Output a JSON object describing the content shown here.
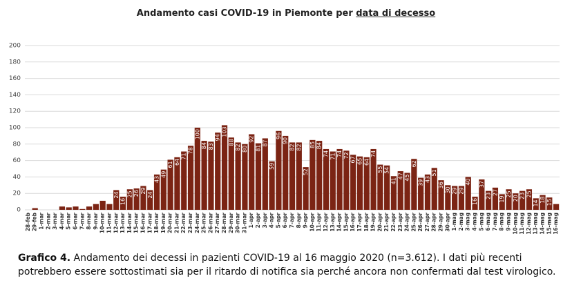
{
  "chart_data": {
    "type": "bar",
    "title": "Andamento casi COVID-19 in Piemonte per ",
    "title_emphasis": "data di decesso",
    "caption_label": "Grafico 4.",
    "caption": "Andamento dei decessi in pazienti COVID-19 al 16 maggio 2020 (n=3.612). I dati più recenti potrebbero essere sottostimati sia per il ritardo di notifica sia perché ancora non confermati dal test virologico.",
    "categories": [
      "28-feb",
      "29-feb",
      "1-mar",
      "2-mar",
      "3-mar",
      "4-mar",
      "5-mar",
      "6-mar",
      "7-mar",
      "8-mar",
      "9-mar",
      "10-mar",
      "11-mar",
      "12-mar",
      "13-mar",
      "14-mar",
      "15-mar",
      "16-mar",
      "17-mar",
      "18-mar",
      "19-mar",
      "20-mar",
      "21-mar",
      "22-mar",
      "23-mar",
      "24-mar",
      "25-mar",
      "26-mar",
      "27-mar",
      "28-mar",
      "29-mar",
      "30-mar",
      "31-mar",
      "1-apr",
      "2-apr",
      "3-apr",
      "4-apr",
      "5-apr",
      "6-apr",
      "7-apr",
      "8-apr",
      "9-apr",
      "10-apr",
      "11-apr",
      "12-apr",
      "13-apr",
      "14-apr",
      "15-apr",
      "16-apr",
      "17-apr",
      "18-apr",
      "19-apr",
      "20-apr",
      "21-apr",
      "22-apr",
      "23-apr",
      "24-apr",
      "25-apr",
      "26-apr",
      "27-apr",
      "28-apr",
      "29-apr",
      "30-apr",
      "1-mag",
      "2-mag",
      "3-mag",
      "4-mag",
      "5-mag",
      "6-mag",
      "7-mag",
      "8-mag",
      "9-mag",
      "10-mag",
      "11-mag",
      "12-mag",
      "13-mag",
      "14-mag",
      "15-mag",
      "16-mag"
    ],
    "values": [
      0,
      2,
      0,
      0,
      0,
      4,
      3,
      4,
      1,
      4,
      7,
      11,
      7,
      24,
      16,
      25,
      26,
      29,
      24,
      43,
      49,
      61,
      64,
      71,
      78,
      100,
      84,
      83,
      94,
      103,
      88,
      82,
      80,
      92,
      81,
      87,
      59,
      96,
      90,
      82,
      82,
      52,
      85,
      84,
      74,
      71,
      74,
      72,
      67,
      65,
      64,
      74,
      55,
      54,
      41,
      47,
      45,
      62,
      39,
      43,
      51,
      36,
      30,
      29,
      29,
      40,
      16,
      37,
      23,
      27,
      19,
      25,
      20,
      23,
      25,
      14,
      18,
      15,
      7
    ],
    "color": "#7b2414",
    "ylim": [
      0,
      200
    ],
    "yticks": [
      0,
      20,
      40,
      60,
      80,
      100,
      120,
      140,
      160,
      180,
      200
    ],
    "grid": true
  }
}
